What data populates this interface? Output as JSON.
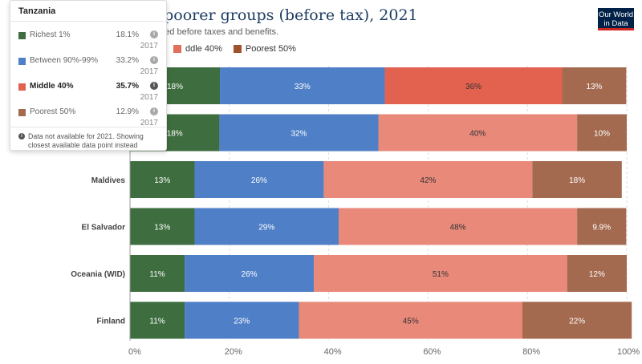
{
  "header": {
    "title": "[…] ross richer and poorer groups (before tax), 2021",
    "subtitle": "T[…] se groups. Income here is measured before taxes and benefits.",
    "logo_line1": "Our World",
    "logo_line2": "in Data"
  },
  "legend": {
    "items": [
      {
        "label": "ddle 40%",
        "color": "#e26f5b"
      },
      {
        "label": "Poorest 50%",
        "color": "#a0522d"
      }
    ]
  },
  "colors": {
    "richest_1": "#3e6d3f",
    "between_90_99": "#4f7fc7",
    "middle_40": "#e8897a",
    "middle_40_highlight": "#e2614f",
    "poorest_50": "#a46a50"
  },
  "chart_data": {
    "type": "bar",
    "orientation": "horizontal",
    "stacked": true,
    "categories": [
      "",
      "",
      "Maldives",
      "El Salvador",
      "Oceania (WID)",
      "Finland"
    ],
    "series": [
      {
        "name": "Richest 1%",
        "values": [
          18.1,
          18,
          13,
          13,
          11,
          11
        ],
        "labels": [
          "18%",
          "18%",
          "13%",
          "13%",
          "11%",
          "11%"
        ]
      },
      {
        "name": "Between 90%-99%",
        "values": [
          33.2,
          32,
          26,
          29,
          26,
          23
        ],
        "labels": [
          "33%",
          "32%",
          "26%",
          "29%",
          "26%",
          "23%"
        ]
      },
      {
        "name": "Middle 40%",
        "values": [
          35.7,
          40,
          42,
          48,
          51,
          45
        ],
        "labels": [
          "36%",
          "40%",
          "42%",
          "48%",
          "51%",
          "45%"
        ]
      },
      {
        "name": "Poorest 50%",
        "values": [
          12.9,
          10,
          18,
          9.9,
          12,
          22
        ],
        "labels": [
          "13%",
          "10%",
          "18%",
          "9.9%",
          "12%",
          "22%"
        ]
      }
    ],
    "xlim": [
      0,
      100
    ],
    "xticks": [
      "0%",
      "20%",
      "40%",
      "60%",
      "80%",
      "100%"
    ],
    "highlight_row": 0,
    "highlight_series": "Middle 40%"
  },
  "tooltip": {
    "title": "Tanzania",
    "rows": [
      {
        "label": "Richest 1%",
        "value": "18.1%",
        "year": "2017",
        "color": "#3e6d3f"
      },
      {
        "label": "Between 90%-99%",
        "value": "33.2%",
        "year": "2017",
        "color": "#4f7fc7"
      },
      {
        "label": "Middle 40%",
        "value": "35.7%",
        "year": "2017",
        "color": "#e2614f"
      },
      {
        "label": "Poorest 50%",
        "value": "12.9%",
        "year": "2017",
        "color": "#a46a50"
      }
    ],
    "active_row": 2,
    "note": "Data not available for 2021. Showing closest available data point instead"
  }
}
